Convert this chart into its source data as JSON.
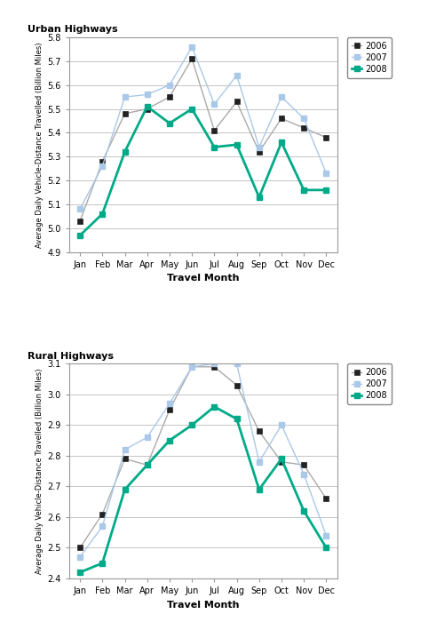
{
  "months": [
    "Jan",
    "Feb",
    "Mar",
    "Apr",
    "May",
    "Jun",
    "Jul",
    "Aug",
    "Sep",
    "Oct",
    "Nov",
    "Dec"
  ],
  "urban": {
    "2006": [
      5.03,
      5.28,
      5.48,
      5.5,
      5.55,
      5.71,
      5.41,
      5.53,
      5.32,
      5.46,
      5.42,
      5.38
    ],
    "2007": [
      5.08,
      5.26,
      5.55,
      5.56,
      5.6,
      5.76,
      5.52,
      5.64,
      5.34,
      5.55,
      5.46,
      5.23
    ],
    "2008": [
      4.97,
      5.06,
      5.32,
      5.51,
      5.44,
      5.5,
      5.34,
      5.35,
      5.13,
      5.36,
      5.16,
      5.16
    ]
  },
  "rural": {
    "2006": [
      2.5,
      2.61,
      2.79,
      2.77,
      2.95,
      3.09,
      3.09,
      3.03,
      2.88,
      2.78,
      2.77,
      2.66
    ],
    "2007": [
      2.47,
      2.57,
      2.82,
      2.86,
      2.97,
      3.09,
      3.1,
      3.1,
      2.78,
      2.9,
      2.74,
      2.54
    ],
    "2008": [
      2.42,
      2.45,
      2.69,
      2.77,
      2.85,
      2.9,
      2.96,
      2.92,
      2.69,
      2.79,
      2.62,
      2.5
    ]
  },
  "color_2006_line": "#aaaaaa",
  "color_2006_marker": "#222222",
  "color_2007": "#aac8e8",
  "color_2008": "#00aa88",
  "urban_ylim": [
    4.9,
    5.8
  ],
  "urban_yticks": [
    4.9,
    5.0,
    5.1,
    5.2,
    5.3,
    5.4,
    5.5,
    5.6,
    5.7,
    5.8
  ],
  "rural_ylim": [
    2.4,
    3.1
  ],
  "rural_yticks": [
    2.4,
    2.5,
    2.6,
    2.7,
    2.8,
    2.9,
    3.0,
    3.1
  ],
  "urban_title": "Urban Highways",
  "rural_title": "Rural Highways",
  "xlabel": "Travel Month",
  "ylabel": "Average Daily Vehicle-Distance Travelled (Billion Miles)"
}
